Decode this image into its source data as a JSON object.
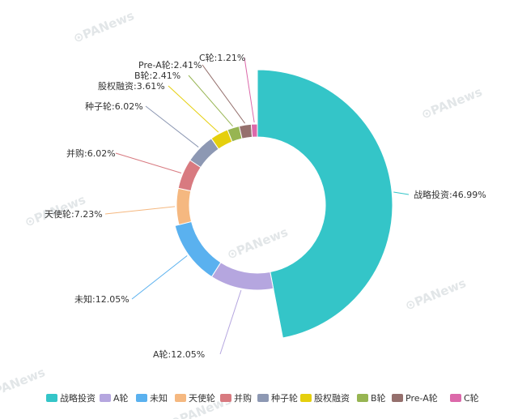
{
  "watermark": "PANews",
  "chart_data": {
    "type": "pie",
    "style": "ring",
    "total_check": "percentages as labelled",
    "slices": [
      {
        "name": "战略投资",
        "value": 46.99,
        "label": "战略投资:46.99%",
        "color": "#34c5c8"
      },
      {
        "name": "A轮",
        "value": 12.05,
        "label": "A轮:12.05%",
        "color": "#b5a6df"
      },
      {
        "name": "未知",
        "value": 12.05,
        "label": "未知:12.05%",
        "color": "#5ab1ef"
      },
      {
        "name": "天使轮",
        "value": 7.23,
        "label": "天使轮:7.23%",
        "color": "#f5b880"
      },
      {
        "name": "并购",
        "value": 6.02,
        "label": "并购:6.02%",
        "color": "#d87a80"
      },
      {
        "name": "种子轮",
        "value": 6.02,
        "label": "种子轮:6.02%",
        "color": "#8d98b3"
      },
      {
        "name": "股权融资",
        "value": 3.61,
        "label": "股权融资:3.61%",
        "color": "#e5cf0d"
      },
      {
        "name": "B轮",
        "value": 2.41,
        "label": "B轮:2.41%",
        "color": "#97b552"
      },
      {
        "name": "Pre-A轮",
        "value": 2.41,
        "label": "Pre-A轮:2.41%",
        "color": "#95706d"
      },
      {
        "name": "C轮",
        "value": 1.21,
        "label": "C轮:1.21%",
        "color": "#dc69aa"
      }
    ],
    "legend": [
      "战略投资",
      "A轮",
      "未知",
      "天使轮",
      "并购",
      "种子轮",
      "股权融资",
      "B轮",
      "Pre-A轮",
      "C轮"
    ],
    "legend_position": "bottom"
  }
}
